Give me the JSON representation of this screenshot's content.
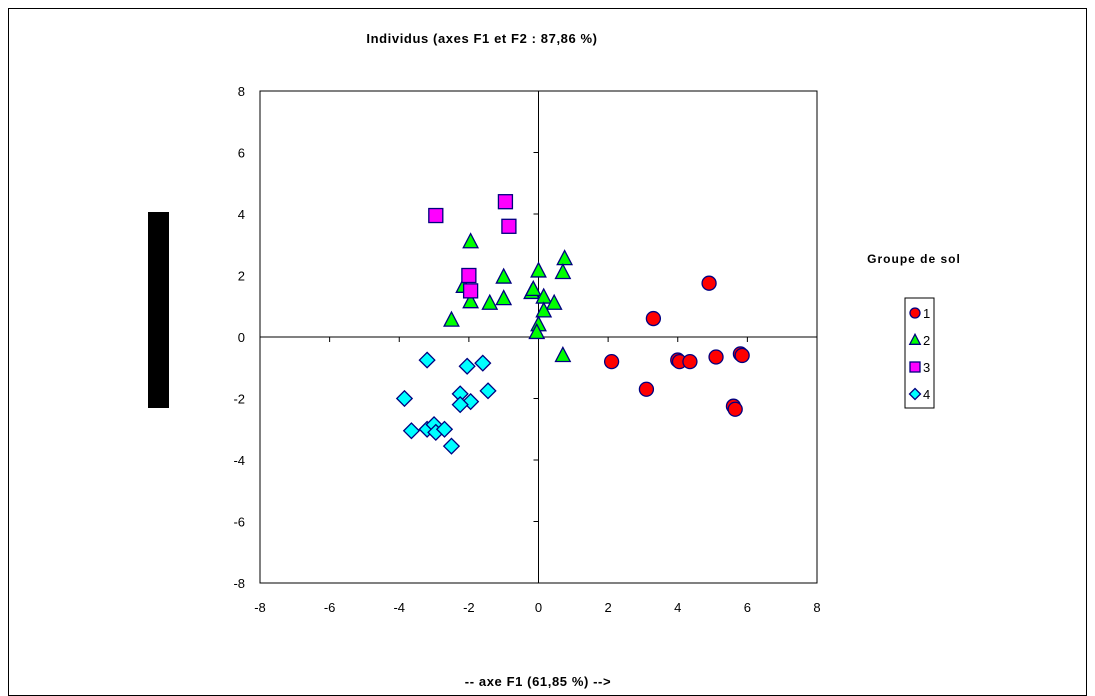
{
  "chart_data": {
    "type": "scatter",
    "title": "Individus (axes F1 et F2 : 87,86 %)",
    "xlabel": "-- axe F1 (61,85 %) -->",
    "ylabel": "",
    "xlim": [
      -8,
      8
    ],
    "ylim": [
      -8,
      8
    ],
    "xticks": [
      -8,
      -6,
      -4,
      -2,
      0,
      2,
      4,
      6,
      8
    ],
    "yticks": [
      -8,
      -6,
      -4,
      -2,
      0,
      2,
      4,
      6,
      8
    ],
    "grid": false,
    "legend": {
      "title": "Groupe de sol",
      "position": "right"
    },
    "series": [
      {
        "name": "1",
        "marker": "circle",
        "color": "#ff0000",
        "points": [
          [
            4.9,
            1.75
          ],
          [
            3.3,
            0.6
          ],
          [
            2.1,
            -0.8
          ],
          [
            3.1,
            -1.7
          ],
          [
            4.0,
            -0.75
          ],
          [
            4.05,
            -0.8
          ],
          [
            4.35,
            -0.8
          ],
          [
            5.1,
            -0.65
          ],
          [
            5.8,
            -0.55
          ],
          [
            5.85,
            -0.6
          ],
          [
            5.6,
            -2.25
          ],
          [
            5.65,
            -2.35
          ]
        ]
      },
      {
        "name": "2",
        "marker": "triangle",
        "color": "#00ff00",
        "points": [
          [
            -1.95,
            3.1
          ],
          [
            -1.0,
            1.95
          ],
          [
            -2.15,
            1.65
          ],
          [
            -1.95,
            1.15
          ],
          [
            -2.5,
            0.55
          ],
          [
            -1.4,
            1.1
          ],
          [
            -1.0,
            1.25
          ],
          [
            -0.2,
            1.45
          ],
          [
            -0.15,
            1.55
          ],
          [
            0.0,
            2.15
          ],
          [
            0.75,
            2.55
          ],
          [
            0.7,
            2.1
          ],
          [
            0.15,
            1.3
          ],
          [
            0.45,
            1.1
          ],
          [
            0.15,
            0.85
          ],
          [
            0.0,
            0.4
          ],
          [
            -0.05,
            0.15
          ],
          [
            0.7,
            -0.6
          ]
        ]
      },
      {
        "name": "3",
        "marker": "square",
        "color": "#ff00ff",
        "points": [
          [
            -2.95,
            3.95
          ],
          [
            -0.95,
            4.4
          ],
          [
            -0.85,
            3.6
          ],
          [
            -2.0,
            2.0
          ],
          [
            -1.95,
            1.5
          ]
        ]
      },
      {
        "name": "4",
        "marker": "diamond",
        "color": "#00ffff",
        "points": [
          [
            -3.2,
            -0.75
          ],
          [
            -2.05,
            -0.95
          ],
          [
            -1.6,
            -0.85
          ],
          [
            -3.85,
            -2.0
          ],
          [
            -2.25,
            -1.85
          ],
          [
            -1.45,
            -1.75
          ],
          [
            -1.95,
            -2.1
          ],
          [
            -2.25,
            -2.2
          ],
          [
            -3.65,
            -3.05
          ],
          [
            -3.2,
            -3.0
          ],
          [
            -3.0,
            -2.85
          ],
          [
            -2.95,
            -3.1
          ],
          [
            -2.7,
            -3.0
          ],
          [
            -2.5,
            -3.55
          ]
        ]
      }
    ]
  },
  "colors": {
    "marker_outline": "#000080",
    "axis": "#000000",
    "side_bar": "#000000"
  }
}
